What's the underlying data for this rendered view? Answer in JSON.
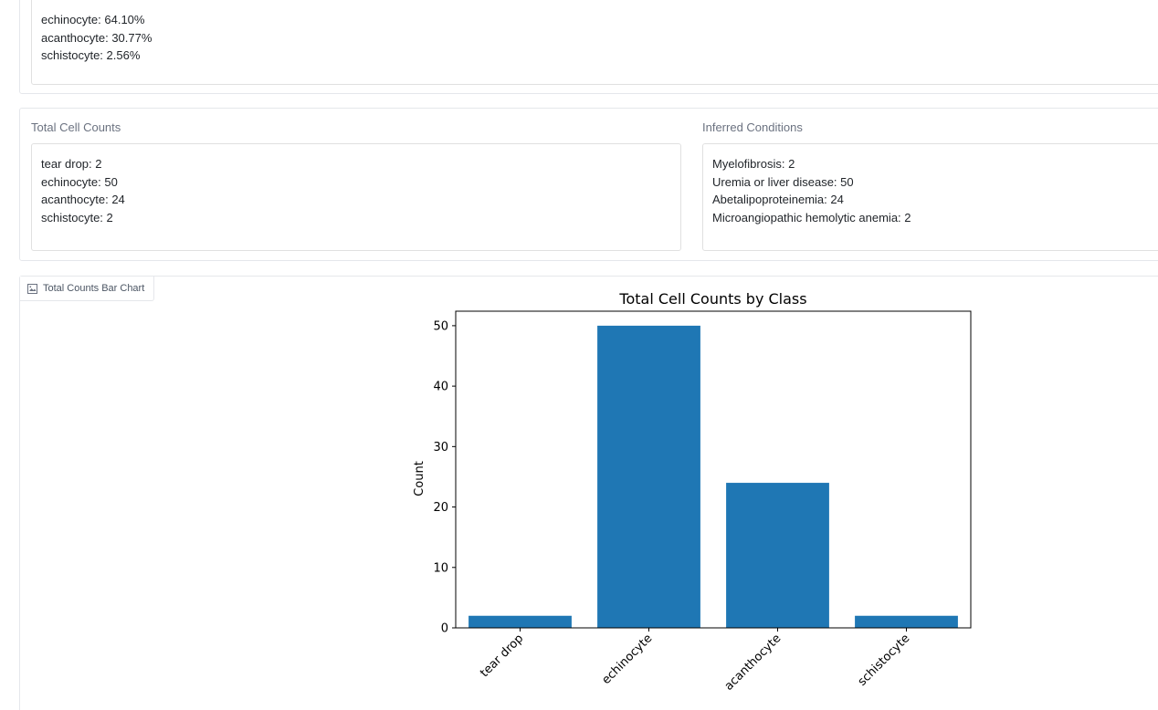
{
  "percentages": {
    "lines": [
      "echinocyte: 64.10%",
      "acanthocyte: 30.77%",
      "schistocyte: 2.56%"
    ]
  },
  "total_counts": {
    "label": "Total Cell Counts",
    "lines": [
      "tear drop: 2",
      "echinocyte: 50",
      "acanthocyte: 24",
      "schistocyte: 2"
    ]
  },
  "inferred_conditions": {
    "label": "Inferred Conditions",
    "lines": [
      "Myelofibrosis: 2",
      "Uremia or liver disease: 50",
      "Abetalipoproteinemia: 24",
      "Microangiopathic hemolytic anemia: 2"
    ]
  },
  "chart_tab": {
    "label": "Total Counts Bar Chart",
    "icon": "image-icon"
  },
  "chart_data": {
    "type": "bar",
    "title": "Total Cell Counts by Class",
    "xlabel": "",
    "ylabel": "Count",
    "categories": [
      "tear drop",
      "echinocyte",
      "acanthocyte",
      "schistocyte"
    ],
    "values": [
      2,
      50,
      24,
      2
    ],
    "ylim": [
      0,
      52.4
    ],
    "yticks": [
      0,
      10,
      20,
      30,
      40,
      50
    ],
    "bar_color": "#1f77b4",
    "grid": false,
    "legend": "none"
  }
}
